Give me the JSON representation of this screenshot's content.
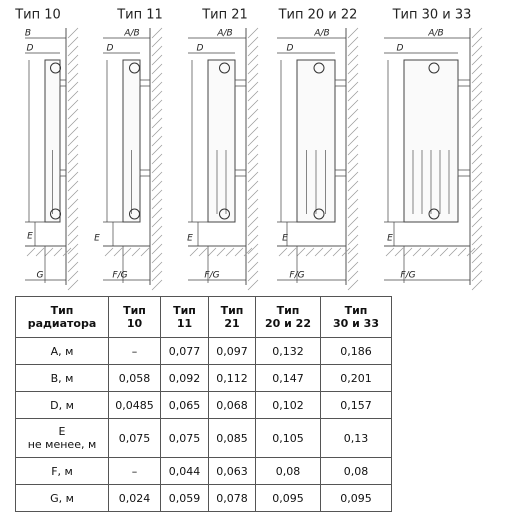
{
  "drawings": [
    {
      "title": "Тип 10",
      "labels": [
        "B",
        "D",
        "E",
        "G"
      ]
    },
    {
      "title": "Тип 11",
      "labels": [
        "A/B",
        "D",
        "E",
        "F/G"
      ]
    },
    {
      "title": "Тип 21",
      "labels": [
        "A/B",
        "D",
        "E",
        "F/G"
      ]
    },
    {
      "title": "Тип 20 и 22",
      "labels": [
        "A/B",
        "D",
        "E",
        "F/G"
      ]
    },
    {
      "title": "Тип 30 и 33",
      "labels": [
        "A/B",
        "D",
        "E",
        "F/G"
      ]
    }
  ],
  "table": {
    "header": [
      [
        "Тип",
        "радиатора"
      ],
      [
        "Тип",
        "10"
      ],
      [
        "Тип",
        "11"
      ],
      [
        "Тип",
        "21"
      ],
      [
        "Тип",
        "20 и 22"
      ],
      [
        "Тип",
        "30 и 33"
      ]
    ],
    "rows": [
      [
        [
          "A, м"
        ],
        [
          "–"
        ],
        [
          "0,077"
        ],
        [
          "0,097"
        ],
        [
          "0,132"
        ],
        [
          "0,186"
        ]
      ],
      [
        [
          "B, м"
        ],
        [
          "0,058"
        ],
        [
          "0,092"
        ],
        [
          "0,112"
        ],
        [
          "0,147"
        ],
        [
          "0,201"
        ]
      ],
      [
        [
          "D, м"
        ],
        [
          "0,0485"
        ],
        [
          "0,065"
        ],
        [
          "0,068"
        ],
        [
          "0,102"
        ],
        [
          "0,157"
        ]
      ],
      [
        [
          "E",
          "не менее, м"
        ],
        [
          "0,075"
        ],
        [
          "0,075"
        ],
        [
          "0,085"
        ],
        [
          "0,105"
        ],
        [
          "0,13"
        ]
      ],
      [
        [
          "F, м"
        ],
        [
          "–"
        ],
        [
          "0,044"
        ],
        [
          "0,063"
        ],
        [
          "0,08"
        ],
        [
          "0,08"
        ]
      ],
      [
        [
          "G, м"
        ],
        [
          "0,024"
        ],
        [
          "0,059"
        ],
        [
          "0,078"
        ],
        [
          "0,095"
        ],
        [
          "0,095"
        ]
      ]
    ]
  }
}
